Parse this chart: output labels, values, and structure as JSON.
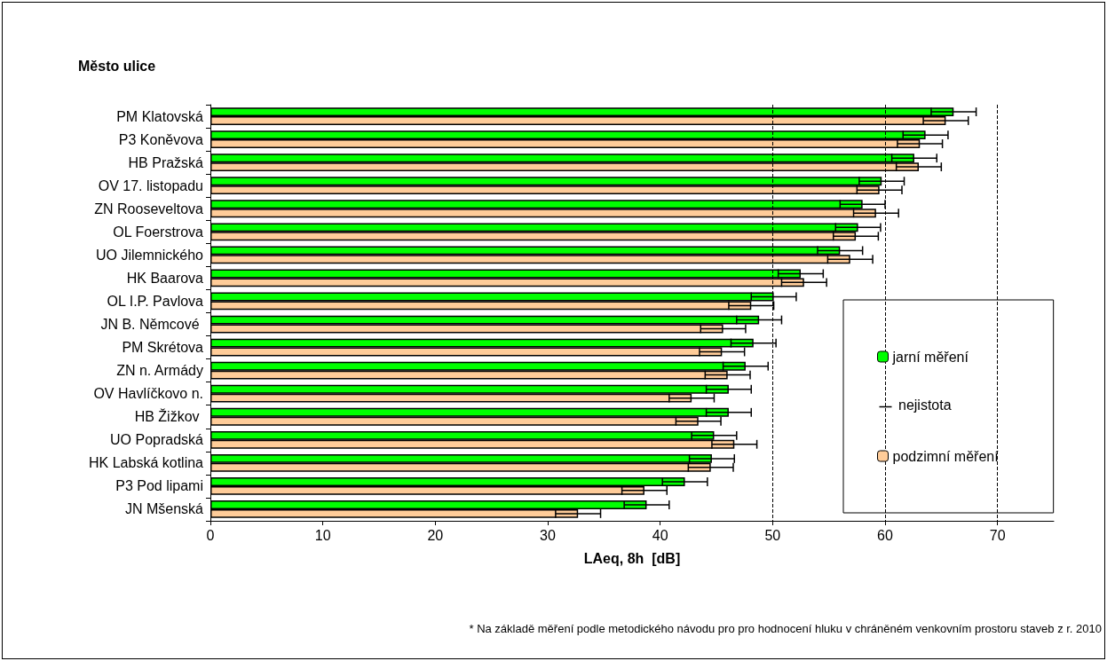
{
  "chart_data": {
    "type": "bar",
    "orientation": "horizontal",
    "ylabel": "Město ulice",
    "xlabel": "LAeq, 8h  [dB]",
    "categories": [
      "PM Klatovská",
      "P3 Koněvova",
      "HB Pražská",
      "OV 17. listopadu",
      "ZN Rooseveltova",
      "OL Foerstrova",
      "UO Jilemnického",
      "HK Baarova",
      "OL I.P. Pavlova",
      "JN B. Němcové ",
      "PM Skrétova",
      "ZN n. Armády",
      "OV Havlíčkovo n.",
      "HB Žižkov ",
      "UO Popradská",
      "HK Labská kotlina",
      "P3 Pod lipami",
      "JN Mšenská"
    ],
    "series": [
      {
        "name": "jarní měření",
        "color": "#00ff00",
        "values": [
          66.1,
          63.6,
          62.6,
          59.7,
          58.0,
          57.6,
          56.0,
          52.5,
          50.1,
          48.8,
          48.3,
          47.6,
          46.1,
          46.1,
          44.8,
          44.6,
          42.2,
          38.8
        ],
        "errors": [
          2,
          2,
          2,
          2,
          2,
          2,
          2,
          2,
          2,
          2,
          2,
          2,
          2,
          2,
          2,
          2,
          2,
          2
        ]
      },
      {
        "name": "podzimní měření",
        "color": "#ffcc99",
        "values": [
          65.4,
          63.1,
          63.0,
          59.5,
          59.2,
          57.4,
          56.9,
          52.8,
          48.1,
          45.6,
          45.5,
          46.0,
          42.8,
          43.4,
          46.6,
          44.5,
          38.6,
          32.7
        ],
        "errors": [
          2,
          2,
          2,
          2,
          2,
          2,
          2,
          2,
          2,
          2,
          2,
          2,
          2,
          2,
          2,
          2,
          2,
          2
        ]
      }
    ],
    "xlim": [
      0,
      75
    ],
    "xticks": [
      0,
      10,
      20,
      30,
      40,
      50,
      60,
      70
    ],
    "ref_lines": [
      {
        "axis": "x",
        "value": 50,
        "line_style": "dashed"
      },
      {
        "axis": "x",
        "value": 60,
        "line_style": "dashed"
      },
      {
        "axis": "x",
        "value": 70,
        "line_style": "dashed"
      }
    ],
    "grid": false,
    "legend": "bottom right",
    "annotations": [
      "nejistota",
      "* Na základě měření podle metodického návodu pro pro hodnocení hluku v chráněném venkovním prostoru staveb z r. 2010"
    ]
  }
}
